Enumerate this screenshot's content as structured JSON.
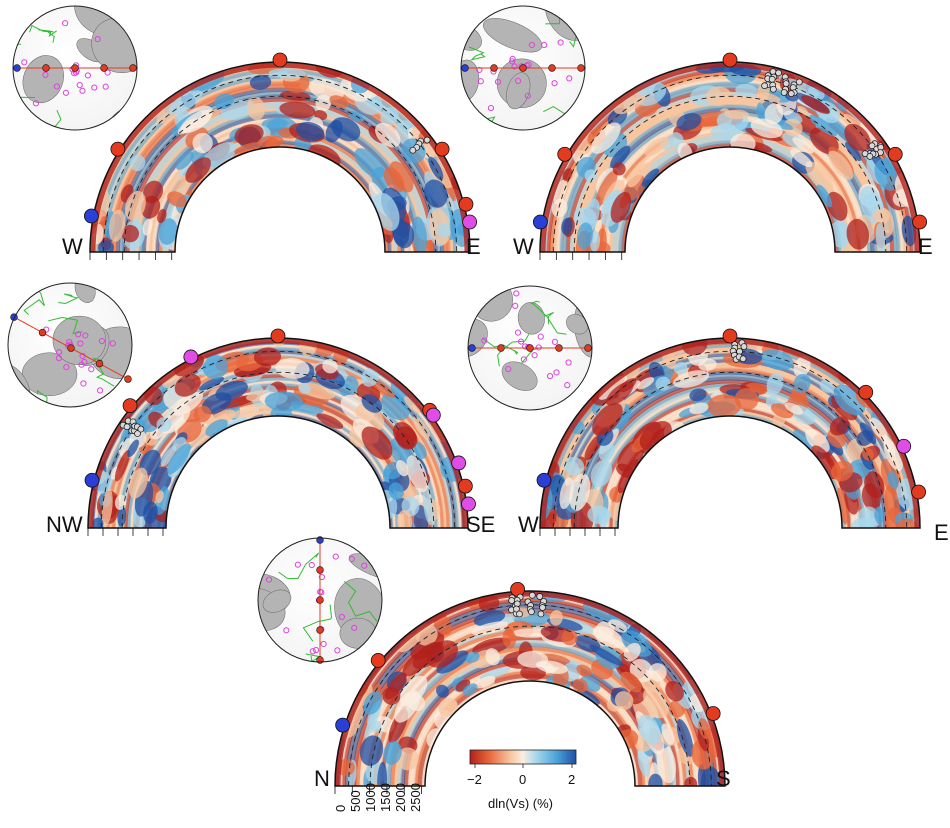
{
  "colors": {
    "strong_slow": "#b2201c",
    "slow": "#e8663a",
    "weak_slow": "#f7c6a0",
    "neutral": "#fbeee0",
    "weak_fast": "#a8d8ee",
    "fast": "#4aa3d9",
    "strong_fast": "#1f4fa3",
    "red_marker": "#e33b1f",
    "blue_marker": "#2a3fd6",
    "magenta_marker": "#e04de6",
    "quake_marker": "#d8d8d8",
    "globe_land": "#b4b4b4",
    "plate_boundary": "#33bb33",
    "event_circle": "#dd44dd"
  },
  "panels": [
    {
      "left_label": "W",
      "right_label": "E",
      "globe": "americas-globe",
      "red": [
        0.18,
        0.5,
        0.82,
        0.92
      ],
      "blue": [
        0.06
      ],
      "magenta": [
        0.95
      ],
      "quakes": [
        0.79
      ]
    },
    {
      "left_label": "W",
      "right_label": "E",
      "globe": "north-america-globe",
      "red": [
        0.17,
        0.5,
        0.83,
        0.95
      ],
      "blue": [
        0.05
      ],
      "magenta": [],
      "quakes": [
        0.57,
        0.58,
        0.6,
        0.62,
        0.8,
        0.81
      ]
    },
    {
      "left_label": "NW",
      "right_label": "SE",
      "globe": "australia-asia-globe",
      "red": [
        0.22,
        0.5,
        0.79,
        0.93
      ],
      "blue": [
        0.08
      ],
      "magenta": [
        0.35,
        0.8,
        0.89,
        0.96
      ],
      "quakes": [
        0.19,
        0.2
      ]
    },
    {
      "left_label": "W",
      "right_label": "E",
      "globe": "australia-pacific-globe",
      "red": [
        0.5,
        0.75,
        0.94
      ],
      "blue": [
        0.08
      ],
      "magenta": [
        0.86
      ],
      "quakes": [
        0.51,
        0.52
      ]
    },
    {
      "left_label": "N",
      "right_label": "S",
      "globe": "asia-globe",
      "red": [
        0.22,
        0.48,
        0.88
      ],
      "blue": [
        0.1
      ],
      "magenta": [],
      "quakes": [
        0.47,
        0.48,
        0.5,
        0.52
      ]
    }
  ],
  "depth_ticks": [
    "0",
    "500",
    "1000",
    "1500",
    "2000",
    "2500"
  ],
  "colorbar": {
    "tick_labels": [
      "−2",
      "0",
      "2"
    ],
    "title": "dln(Vs) (%)",
    "range": [
      -2,
      2
    ]
  }
}
